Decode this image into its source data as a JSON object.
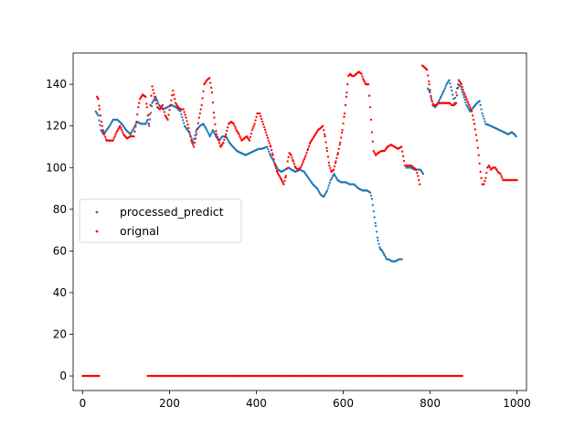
{
  "chart_data": {
    "type": "scatter",
    "title": "",
    "xlabel": "",
    "ylabel": "",
    "xlim": [
      -22,
      1022
    ],
    "ylim": [
      -7,
      155
    ],
    "xticks": [
      0,
      200,
      400,
      600,
      800,
      1000
    ],
    "yticks": [
      0,
      20,
      40,
      60,
      80,
      100,
      120,
      140
    ],
    "grid": false,
    "legend": {
      "placement": "center-left",
      "entries": [
        "processed_predict",
        "orignal"
      ]
    },
    "series": [
      {
        "name": "processed_predict",
        "color": "#1f77b4",
        "knots": [
          [
            30,
            127
          ],
          [
            36,
            125
          ],
          [
            42,
            118
          ],
          [
            48,
            116
          ],
          [
            55,
            118
          ],
          [
            62,
            120
          ],
          [
            70,
            123
          ],
          [
            80,
            123
          ],
          [
            90,
            121
          ],
          [
            100,
            118
          ],
          [
            110,
            116
          ],
          [
            118,
            119
          ],
          [
            125,
            122
          ],
          [
            135,
            121
          ],
          [
            145,
            121
          ],
          [
            150,
            123
          ],
          [
            153,
            120
          ],
          [
            160,
            131
          ],
          [
            168,
            134
          ],
          [
            176,
            130
          ],
          [
            185,
            128
          ],
          [
            195,
            129
          ],
          [
            205,
            130
          ],
          [
            215,
            129
          ],
          [
            225,
            127
          ],
          [
            235,
            120
          ],
          [
            245,
            117
          ],
          [
            255,
            112
          ],
          [
            262,
            118
          ],
          [
            270,
            120
          ],
          [
            278,
            121
          ],
          [
            286,
            118
          ],
          [
            293,
            115
          ],
          [
            300,
            118
          ],
          [
            307,
            115
          ],
          [
            314,
            113
          ],
          [
            322,
            115
          ],
          [
            330,
            115
          ],
          [
            338,
            112
          ],
          [
            346,
            110
          ],
          [
            355,
            108
          ],
          [
            365,
            107
          ],
          [
            375,
            106
          ],
          [
            385,
            107
          ],
          [
            395,
            108
          ],
          [
            405,
            109
          ],
          [
            412,
            109
          ],
          [
            425,
            110
          ],
          [
            432,
            106
          ],
          [
            440,
            103
          ],
          [
            450,
            99
          ],
          [
            458,
            98
          ],
          [
            466,
            99
          ],
          [
            474,
            100
          ],
          [
            481,
            99
          ],
          [
            490,
            98
          ],
          [
            500,
            99
          ],
          [
            510,
            98
          ],
          [
            520,
            95
          ],
          [
            530,
            92
          ],
          [
            540,
            90
          ],
          [
            548,
            87
          ],
          [
            555,
            86
          ],
          [
            563,
            89
          ],
          [
            571,
            94
          ],
          [
            579,
            97
          ],
          [
            587,
            94
          ],
          [
            595,
            93
          ],
          [
            605,
            93
          ],
          [
            615,
            92
          ],
          [
            625,
            92
          ],
          [
            635,
            90
          ],
          [
            645,
            89
          ],
          [
            655,
            89
          ],
          [
            662,
            88
          ],
          [
            666,
            85
          ],
          [
            670,
            79
          ],
          [
            675,
            72
          ],
          [
            680,
            65
          ],
          [
            685,
            61
          ],
          [
            690,
            60
          ],
          [
            695,
            58
          ],
          [
            700,
            56
          ],
          [
            705,
            56
          ],
          [
            712,
            55
          ],
          [
            720,
            55
          ],
          [
            728,
            56
          ],
          [
            735,
            56
          ],
          [
            745,
            100
          ],
          [
            755,
            100
          ],
          [
            765,
            99
          ],
          [
            772,
            99
          ],
          [
            778,
            99
          ],
          [
            784,
            97
          ],
          [
            795,
            138
          ],
          [
            800,
            136
          ],
          [
            806,
            130
          ],
          [
            812,
            129
          ],
          [
            818,
            131
          ],
          [
            825,
            134
          ],
          [
            832,
            137
          ],
          [
            838,
            140
          ],
          [
            844,
            142
          ],
          [
            850,
            137
          ],
          [
            856,
            131
          ],
          [
            860,
            136
          ],
          [
            864,
            140
          ],
          [
            870,
            139
          ],
          [
            876,
            135
          ],
          [
            884,
            130
          ],
          [
            892,
            127
          ],
          [
            900,
            129
          ],
          [
            908,
            131
          ],
          [
            914,
            132
          ],
          [
            920,
            126
          ],
          [
            928,
            121
          ],
          [
            940,
            120
          ],
          [
            950,
            119
          ],
          [
            960,
            118
          ],
          [
            970,
            117
          ],
          [
            980,
            116
          ],
          [
            988,
            117
          ],
          [
            994,
            116
          ],
          [
            998,
            115
          ]
        ]
      },
      {
        "name": "orignal",
        "color": "#ff0000",
        "knots": [
          [
            0,
            0
          ],
          [
            38,
            0
          ],
          [
            33,
            134
          ],
          [
            36,
            133
          ],
          [
            39,
            128
          ],
          [
            43,
            122
          ],
          [
            48,
            117
          ],
          [
            55,
            113
          ],
          [
            62,
            113
          ],
          [
            70,
            113
          ],
          [
            78,
            117
          ],
          [
            86,
            120
          ],
          [
            94,
            116
          ],
          [
            102,
            114
          ],
          [
            110,
            115
          ],
          [
            118,
            115
          ],
          [
            124,
            122
          ],
          [
            128,
            129
          ],
          [
            132,
            133
          ],
          [
            138,
            135
          ],
          [
            145,
            134
          ],
          [
            148,
            129
          ],
          [
            152,
            121
          ],
          [
            160,
            139
          ],
          [
            166,
            134
          ],
          [
            172,
            129
          ],
          [
            178,
            128
          ],
          [
            184,
            130
          ],
          [
            190,
            125
          ],
          [
            196,
            123
          ],
          [
            202,
            130
          ],
          [
            208,
            137
          ],
          [
            214,
            131
          ],
          [
            220,
            129
          ],
          [
            226,
            128
          ],
          [
            232,
            128
          ],
          [
            238,
            124
          ],
          [
            244,
            119
          ],
          [
            250,
            113
          ],
          [
            256,
            110
          ],
          [
            262,
            116
          ],
          [
            268,
            124
          ],
          [
            274,
            130
          ],
          [
            280,
            140
          ],
          [
            286,
            142
          ],
          [
            292,
            143
          ],
          [
            298,
            136
          ],
          [
            303,
            124
          ],
          [
            308,
            116
          ],
          [
            313,
            113
          ],
          [
            318,
            110
          ],
          [
            324,
            112
          ],
          [
            330,
            116
          ],
          [
            336,
            121
          ],
          [
            342,
            122
          ],
          [
            348,
            121
          ],
          [
            354,
            118
          ],
          [
            360,
            116
          ],
          [
            366,
            113
          ],
          [
            372,
            114
          ],
          [
            378,
            115
          ],
          [
            384,
            113
          ],
          [
            390,
            118
          ],
          [
            396,
            121
          ],
          [
            402,
            126
          ],
          [
            408,
            126
          ],
          [
            428,
            113
          ],
          [
            433,
            110
          ],
          [
            438,
            106
          ],
          [
            443,
            101
          ],
          [
            448,
            98
          ],
          [
            453,
            96
          ],
          [
            458,
            94
          ],
          [
            463,
            92
          ],
          [
            468,
            96
          ],
          [
            472,
            103
          ],
          [
            476,
            107
          ],
          [
            480,
            106
          ],
          [
            485,
            103
          ],
          [
            490,
            100
          ],
          [
            496,
            99
          ],
          [
            502,
            100
          ],
          [
            508,
            103
          ],
          [
            514,
            106
          ],
          [
            519,
            109
          ],
          [
            524,
            112
          ],
          [
            530,
            114
          ],
          [
            536,
            116
          ],
          [
            542,
            118
          ],
          [
            548,
            119
          ],
          [
            553,
            120
          ],
          [
            558,
            115
          ],
          [
            563,
            108
          ],
          [
            568,
            101
          ],
          [
            573,
            98
          ],
          [
            578,
            99
          ],
          [
            583,
            103
          ],
          [
            588,
            107
          ],
          [
            593,
            112
          ],
          [
            598,
            118
          ],
          [
            603,
            126
          ],
          [
            608,
            136
          ],
          [
            612,
            144
          ],
          [
            616,
            145
          ],
          [
            620,
            144
          ],
          [
            625,
            144
          ],
          [
            630,
            145
          ],
          [
            636,
            146
          ],
          [
            642,
            145
          ],
          [
            647,
            142
          ],
          [
            652,
            140
          ],
          [
            658,
            140
          ],
          [
            662,
            129
          ],
          [
            666,
            117
          ],
          [
            670,
            108
          ],
          [
            675,
            106
          ],
          [
            680,
            107
          ],
          [
            688,
            108
          ],
          [
            695,
            108
          ],
          [
            702,
            110
          ],
          [
            710,
            111
          ],
          [
            718,
            110
          ],
          [
            726,
            109
          ],
          [
            734,
            110
          ],
          [
            742,
            101
          ],
          [
            750,
            101
          ],
          [
            756,
            101
          ],
          [
            762,
            100
          ],
          [
            768,
            99
          ],
          [
            772,
            96
          ],
          [
            776,
            92
          ],
          [
            782,
            149
          ],
          [
            788,
            148
          ],
          [
            793,
            147
          ],
          [
            798,
            140
          ],
          [
            803,
            133
          ],
          [
            808,
            130
          ],
          [
            814,
            130
          ],
          [
            820,
            131
          ],
          [
            828,
            131
          ],
          [
            835,
            131
          ],
          [
            840,
            131
          ],
          [
            845,
            131
          ],
          [
            850,
            130
          ],
          [
            855,
            130
          ],
          [
            860,
            131
          ],
          [
            866,
            142
          ],
          [
            872,
            140
          ],
          [
            878,
            136
          ],
          [
            884,
            133
          ],
          [
            890,
            130
          ],
          [
            896,
            127
          ],
          [
            902,
            121
          ],
          [
            908,
            113
          ],
          [
            912,
            106
          ],
          [
            916,
            98
          ],
          [
            920,
            92
          ],
          [
            924,
            92
          ],
          [
            928,
            95
          ],
          [
            932,
            100
          ],
          [
            936,
            101
          ],
          [
            940,
            99
          ],
          [
            945,
            100
          ],
          [
            950,
            100
          ],
          [
            956,
            98
          ],
          [
            962,
            97
          ],
          [
            968,
            94
          ],
          [
            975,
            94
          ],
          [
            985,
            94
          ],
          [
            993,
            94
          ],
          [
            1000,
            94
          ],
          [
            150,
            0
          ],
          [
            158,
            0
          ],
          [
            410,
            0
          ],
          [
            424,
            0
          ],
          [
            462,
            0
          ],
          [
            466,
            0
          ],
          [
            735,
            0
          ],
          [
            746,
            0
          ],
          [
            778,
            0
          ],
          [
            790,
            0
          ],
          [
            862,
            0
          ],
          [
            874,
            0
          ]
        ]
      }
    ]
  }
}
